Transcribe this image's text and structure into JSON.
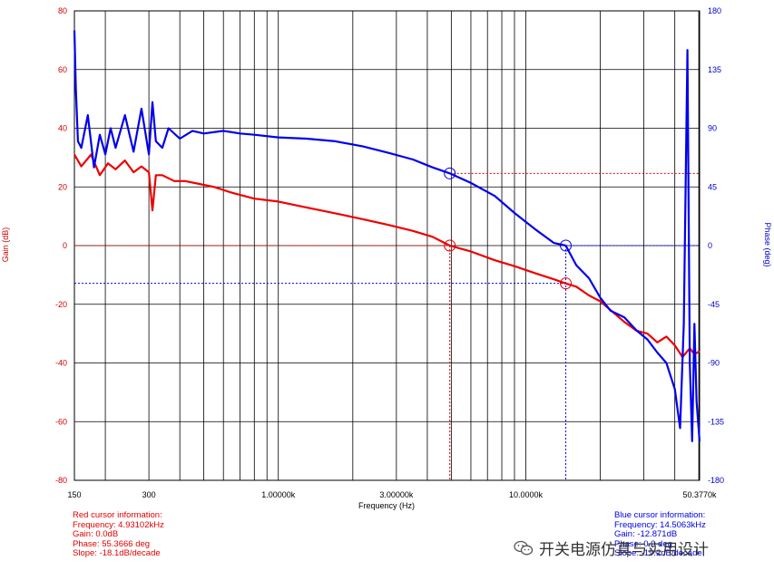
{
  "chart_data": {
    "type": "line",
    "xlabel": "Frequency (Hz)",
    "ylabel_left": "Gain (dB)",
    "ylabel_right": "Phase (deg)",
    "x_scale": "log",
    "xlim": [
      150,
      50377
    ],
    "x_ticks": [
      {
        "value": 150,
        "label": "150"
      },
      {
        "value": 300,
        "label": "300"
      },
      {
        "value": 1000,
        "label": "1.00000k"
      },
      {
        "value": 3000,
        "label": "3.00000k"
      },
      {
        "value": 10000,
        "label": "10.0000k"
      },
      {
        "value": 50377,
        "label": "50.3770k"
      }
    ],
    "gain_axis": {
      "ylim": [
        -80,
        80
      ],
      "ticks": [
        "80",
        "60",
        "40",
        "20",
        "0",
        "-20",
        "-40",
        "-60",
        "-80"
      ]
    },
    "phase_axis": {
      "ylim": [
        -180,
        180
      ],
      "ticks": [
        "180",
        "135",
        "90",
        "45",
        "0",
        "-45",
        "-90",
        "-135",
        "-180"
      ]
    },
    "grid": true,
    "series": [
      {
        "axis": "gain",
        "color": "#ee0000",
        "x": [
          150,
          160,
          175,
          190,
          205,
          220,
          240,
          260,
          280,
          300,
          310,
          320,
          340,
          380,
          420,
          480,
          550,
          650,
          800,
          1000,
          1300,
          1700,
          2200,
          2800,
          3500,
          4200,
          4931,
          6000,
          7500,
          9000,
          11000,
          13000,
          14506,
          16000,
          18000,
          20000,
          22000,
          25000,
          28000,
          31000,
          34000,
          37000,
          40000,
          43000,
          46000,
          48000,
          50377
        ],
        "y": [
          31,
          27,
          31,
          24,
          28,
          26,
          29,
          25,
          27,
          25,
          12,
          24,
          24,
          22,
          22,
          21,
          20,
          18,
          16,
          15,
          13,
          11,
          9,
          7,
          5,
          3,
          0,
          -2,
          -5,
          -7,
          -9.5,
          -11.5,
          -12.9,
          -14,
          -17,
          -19,
          -22,
          -26,
          -29,
          -30,
          -33,
          -31,
          -34,
          -38,
          -35,
          -37,
          -36
        ]
      },
      {
        "axis": "phase",
        "color": "#0000ee",
        "x": [
          150,
          152,
          155,
          160,
          170,
          180,
          190,
          200,
          210,
          220,
          240,
          260,
          280,
          300,
          310,
          320,
          340,
          360,
          400,
          450,
          500,
          600,
          700,
          800,
          1000,
          1300,
          1700,
          2200,
          2800,
          3500,
          4200,
          4931,
          6000,
          7500,
          9000,
          11000,
          13000,
          14506,
          16000,
          18000,
          20000,
          22000,
          25000,
          28000,
          31000,
          34000,
          37000,
          40000,
          42000,
          43500,
          45000,
          46000,
          47000,
          48000,
          49000,
          50377
        ],
        "y": [
          165,
          120,
          80,
          75,
          100,
          60,
          85,
          70,
          90,
          75,
          100,
          72,
          105,
          70,
          110,
          80,
          75,
          90,
          82,
          88,
          86,
          88,
          86,
          85,
          83,
          82,
          80,
          76,
          71,
          66,
          60,
          55.4,
          48,
          38,
          25,
          12,
          2,
          0,
          -15,
          -25,
          -40,
          -50,
          -55,
          -65,
          -72,
          -82,
          -90,
          -110,
          -140,
          -60,
          150,
          -90,
          -150,
          -60,
          -120,
          -150
        ]
      }
    ],
    "cursors": {
      "red": {
        "frequency": 4931.02,
        "gain_db": 0.0,
        "phase_deg": 55.3666
      },
      "blue": {
        "frequency": 14506.3,
        "gain_db": -12.871,
        "phase_deg": 0
      }
    }
  },
  "red_cursor": {
    "title": "Red cursor information:",
    "frequency": "Frequency: 4.93102kHz",
    "gain": "Gain: 0.0dB",
    "phase": "Phase: 55.3666 deg",
    "slope": "Slope: -18.1dB/decade"
  },
  "blue_cursor": {
    "title": "Blue cursor information:",
    "frequency": "Frequency: 14.5063kHz",
    "gain": "Gain: -12.871dB",
    "phase": "Phase: 0.0 deg",
    "slope": "Slope: -19.2dB/decade"
  },
  "watermark": {
    "text": "开关电源仿真与实用设计",
    "icon": "wechat-icon"
  },
  "colors": {
    "gain": "#ee0000",
    "phase": "#0000ee",
    "grid": "#000000",
    "gain_axis_text": "#cc0000",
    "phase_axis_text": "#0000cc"
  }
}
